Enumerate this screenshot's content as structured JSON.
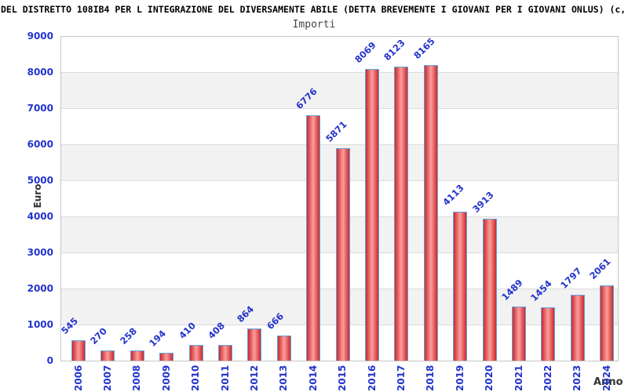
{
  "title": "DEL DISTRETTO 108IB4 PER L INTEGRAZIONE DEL DIVERSAMENTE ABILE (DETTA BREVEMENTE I GIOVANI PER I GIOVANI ONLUS) (c,",
  "chart_data": {
    "type": "bar",
    "title": "Importi",
    "xlabel": "Anno",
    "ylabel": "Euro",
    "categories": [
      "2006",
      "2007",
      "2008",
      "2009",
      "2010",
      "2011",
      "2012",
      "2013",
      "2014",
      "2015",
      "2016",
      "2017",
      "2018",
      "2019",
      "2020",
      "2021",
      "2022",
      "2023",
      "2024"
    ],
    "values": [
      545,
      270,
      258,
      194,
      410,
      408,
      864,
      666,
      6776,
      5871,
      8069,
      8123,
      8165,
      4113,
      3913,
      1489,
      1454,
      1797,
      2061
    ],
    "ylim": [
      0,
      9000
    ],
    "ytick_step": 1000,
    "yticks": [
      0,
      1000,
      2000,
      3000,
      4000,
      5000,
      6000,
      7000,
      8000,
      9000
    ],
    "bar_labels_shown": true,
    "legend": "none",
    "grid": "horizontal-bands-alternating",
    "colors": {
      "axis_text": "#2233cc",
      "bar_border": "#63a2e0",
      "bar_fill_edge": "#c62c2c",
      "bar_fill_center": "#fb9e9e",
      "band_fill": "#f2f2f2",
      "gridline": "#dcdcdc",
      "plot_border": "#c6c6c6",
      "title_color": "#000000",
      "subtitle_color": "#444444",
      "axis_title_color": "#333333"
    }
  }
}
